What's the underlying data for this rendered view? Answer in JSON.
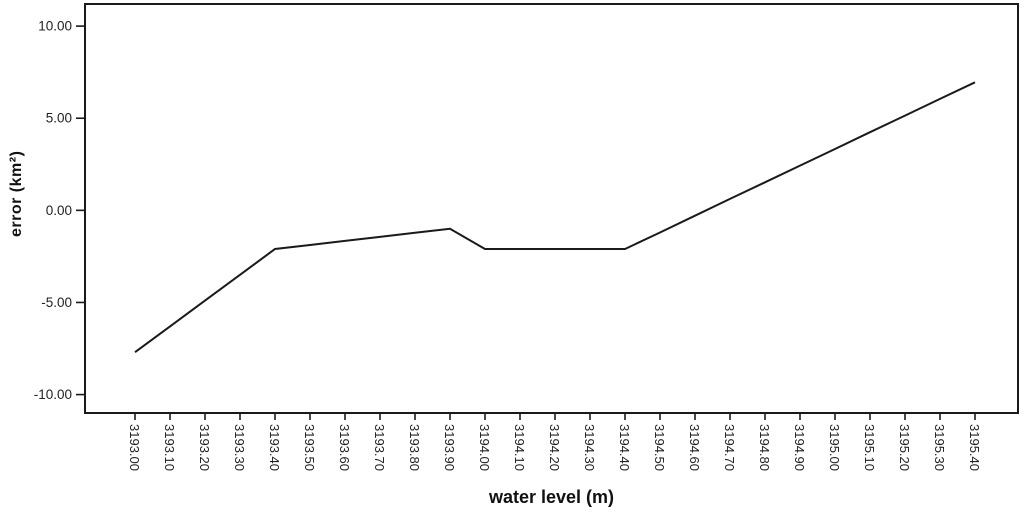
{
  "figure": {
    "background": "#ffffff"
  },
  "chart_data": {
    "type": "line",
    "title": "",
    "xlabel": "water level (m)",
    "ylabel": "error (km²)",
    "categories": [
      "3193.00",
      "3193.10",
      "3193.20",
      "3193.30",
      "3193.40",
      "3193.50",
      "3193.60",
      "3193.70",
      "3193.80",
      "3193.90",
      "3194.00",
      "3194.10",
      "3194.20",
      "3194.30",
      "3194.40",
      "3194.50",
      "3194.60",
      "3194.70",
      "3194.80",
      "3194.90",
      "3195.00",
      "3195.10",
      "3195.20",
      "3195.30",
      "3195.40"
    ],
    "values": [
      -7.7,
      -6.3,
      -4.9,
      -3.5,
      -2.1,
      -1.88,
      -1.66,
      -1.44,
      -1.22,
      -1.0,
      -2.1,
      -2.1,
      -2.1,
      -2.1,
      -2.1,
      -1.2,
      -0.29,
      0.62,
      1.52,
      2.43,
      3.33,
      4.24,
      5.14,
      6.05,
      6.95
    ],
    "y_ticks": {
      "labels": [
        "10.00",
        "5.00",
        "0.00",
        "-5.00",
        "-10.00"
      ],
      "values": [
        10,
        5,
        0,
        -5,
        -10
      ]
    },
    "ylim": [
      -11.0,
      11.2
    ],
    "grid": "off",
    "legend": "none",
    "line_color": "#1a1a1a",
    "axis_color": "#1a1a1a",
    "tick_label_color": "#222222"
  }
}
